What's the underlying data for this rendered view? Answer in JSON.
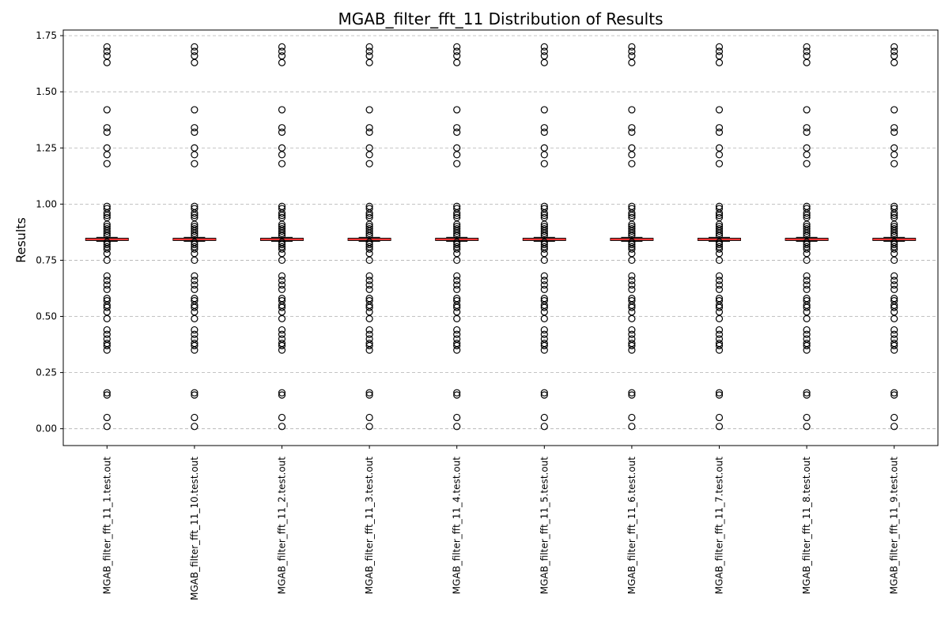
{
  "chart_data": {
    "type": "box",
    "title": "MGAB_filter_fft_11 Distribution of Results",
    "xlabel": "",
    "ylabel": "Results",
    "ylim": [
      -0.075,
      1.775
    ],
    "yticks": [
      0.0,
      0.25,
      0.5,
      0.75,
      1.0,
      1.25,
      1.5,
      1.75
    ],
    "ytick_labels": [
      "0.00",
      "0.25",
      "0.50",
      "0.75",
      "1.00",
      "1.25",
      "1.50",
      "1.75"
    ],
    "grid": "y-dashed",
    "median_color": "#ff0000",
    "categories": [
      "MGAB_filter_fft_11_1.test.out",
      "MGAB_filter_fft_11_10.test.out",
      "MGAB_filter_fft_11_2.test.out",
      "MGAB_filter_fft_11_3.test.out",
      "MGAB_filter_fft_11_4.test.out",
      "MGAB_filter_fft_11_5.test.out",
      "MGAB_filter_fft_11_6.test.out",
      "MGAB_filter_fft_11_7.test.out",
      "MGAB_filter_fft_11_8.test.out",
      "MGAB_filter_fft_11_9.test.out"
    ],
    "box_stats": {
      "q1": 0.838,
      "median": 0.843,
      "q3": 0.848,
      "whisker_low": 0.834,
      "whisker_high": 0.852
    },
    "outliers": [
      0.01,
      0.05,
      0.15,
      0.16,
      0.35,
      0.37,
      0.38,
      0.4,
      0.42,
      0.44,
      0.49,
      0.52,
      0.54,
      0.55,
      0.57,
      0.58,
      0.62,
      0.64,
      0.66,
      0.68,
      0.75,
      0.78,
      0.8,
      0.81,
      0.82,
      0.83,
      0.86,
      0.87,
      0.88,
      0.89,
      0.9,
      0.91,
      0.94,
      0.95,
      0.96,
      0.98,
      0.99,
      1.18,
      1.22,
      1.25,
      1.32,
      1.34,
      1.42,
      1.63,
      1.66,
      1.68,
      1.7
    ]
  }
}
